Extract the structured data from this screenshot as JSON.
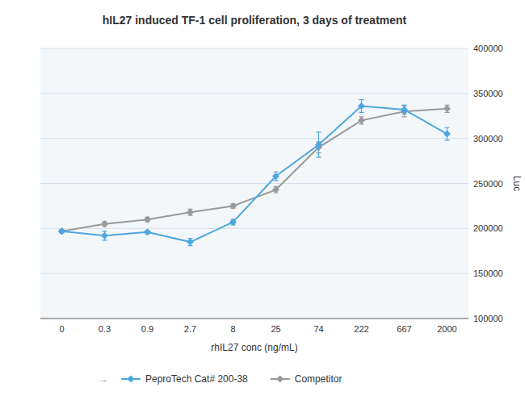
{
  "chart_data": {
    "type": "line",
    "title": "hIL27 induced TF-1 cell proliferation, 3 days of treatment",
    "x_label": "rhIL27 conc (ng/mL)",
    "y_label": "Luc",
    "categories": [
      "0",
      "0.3",
      "0.9",
      "2.7",
      "8",
      "25",
      "74",
      "222",
      "667",
      "2000"
    ],
    "series": [
      {
        "name": "PeproTech Cat# 200-38",
        "color": "#4da6df",
        "marker": "diamond",
        "values": [
          197000,
          192000,
          196000,
          185000,
          207000,
          258000,
          293000,
          336000,
          332000,
          305000
        ],
        "errors": [
          2000,
          5000,
          2000,
          4000,
          3000,
          5000,
          14000,
          7000,
          5000,
          7000
        ]
      },
      {
        "name": "Competitor",
        "color": "#999999",
        "marker": "diamond",
        "values": [
          197000,
          205000,
          210000,
          218000,
          225000,
          243000,
          290000,
          320000,
          330000,
          333000
        ],
        "errors": [
          1500,
          2500,
          2500,
          3500,
          2500,
          3500,
          6000,
          4000,
          6000,
          4000
        ]
      }
    ],
    "ylim": [
      100000,
      400000
    ],
    "yticks": [
      100000,
      150000,
      200000,
      250000,
      300000,
      350000,
      400000
    ],
    "grid": true,
    "legend": "bottom",
    "annotations": [
      "→"
    ]
  }
}
